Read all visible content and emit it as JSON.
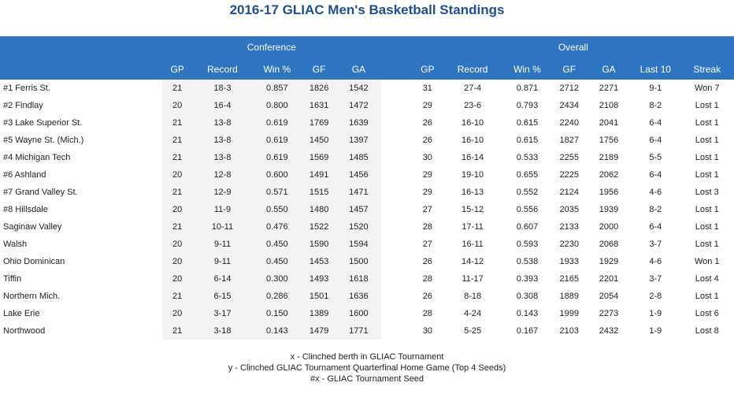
{
  "title": "2016-17 GLIAC Men's Basketball Standings",
  "groups": {
    "conference": "Conference",
    "overall": "Overall"
  },
  "columns": {
    "conf": [
      "GP",
      "Record",
      "Win %",
      "GF",
      "GA"
    ],
    "overall": [
      "GP",
      "Record",
      "Win %",
      "GF",
      "GA",
      "Last 10",
      "Streak"
    ]
  },
  "rows": [
    {
      "team": "#1 Ferris St.",
      "c_gp": "21",
      "c_rec": "18-3",
      "c_win": "0.857",
      "c_gf": "1826",
      "c_ga": "1542",
      "o_gp": "31",
      "o_rec": "27-4",
      "o_win": "0.871",
      "o_gf": "2712",
      "o_ga": "2271",
      "last10": "9-1",
      "streak": "Won 7"
    },
    {
      "team": "#2 Findlay",
      "c_gp": "20",
      "c_rec": "16-4",
      "c_win": "0.800",
      "c_gf": "1631",
      "c_ga": "1472",
      "o_gp": "29",
      "o_rec": "23-6",
      "o_win": "0.793",
      "o_gf": "2434",
      "o_ga": "2108",
      "last10": "8-2",
      "streak": "Lost 1"
    },
    {
      "team": "#3 Lake Superior St.",
      "c_gp": "21",
      "c_rec": "13-8",
      "c_win": "0.619",
      "c_gf": "1769",
      "c_ga": "1639",
      "o_gp": "26",
      "o_rec": "16-10",
      "o_win": "0.615",
      "o_gf": "2240",
      "o_ga": "2041",
      "last10": "6-4",
      "streak": "Lost 1"
    },
    {
      "team": "#5 Wayne St. (Mich.)",
      "c_gp": "21",
      "c_rec": "13-8",
      "c_win": "0.619",
      "c_gf": "1450",
      "c_ga": "1397",
      "o_gp": "26",
      "o_rec": "16-10",
      "o_win": "0.615",
      "o_gf": "1827",
      "o_ga": "1756",
      "last10": "6-4",
      "streak": "Lost 1"
    },
    {
      "team": "#4 Michigan Tech",
      "c_gp": "21",
      "c_rec": "13-8",
      "c_win": "0.619",
      "c_gf": "1569",
      "c_ga": "1485",
      "o_gp": "30",
      "o_rec": "16-14",
      "o_win": "0.533",
      "o_gf": "2255",
      "o_ga": "2189",
      "last10": "5-5",
      "streak": "Lost 1"
    },
    {
      "team": "#6 Ashland",
      "c_gp": "20",
      "c_rec": "12-8",
      "c_win": "0.600",
      "c_gf": "1491",
      "c_ga": "1456",
      "o_gp": "29",
      "o_rec": "19-10",
      "o_win": "0.655",
      "o_gf": "2225",
      "o_ga": "2062",
      "last10": "6-4",
      "streak": "Lost 1"
    },
    {
      "team": "#7 Grand Valley St.",
      "c_gp": "21",
      "c_rec": "12-9",
      "c_win": "0.571",
      "c_gf": "1515",
      "c_ga": "1471",
      "o_gp": "29",
      "o_rec": "16-13",
      "o_win": "0.552",
      "o_gf": "2124",
      "o_ga": "1956",
      "last10": "4-6",
      "streak": "Lost 3"
    },
    {
      "team": "#8 Hillsdale",
      "c_gp": "20",
      "c_rec": "11-9",
      "c_win": "0.550",
      "c_gf": "1480",
      "c_ga": "1457",
      "o_gp": "27",
      "o_rec": "15-12",
      "o_win": "0.556",
      "o_gf": "2035",
      "o_ga": "1939",
      "last10": "8-2",
      "streak": "Lost 1"
    },
    {
      "team": "Saginaw Valley",
      "c_gp": "21",
      "c_rec": "10-11",
      "c_win": "0.476",
      "c_gf": "1522",
      "c_ga": "1520",
      "o_gp": "28",
      "o_rec": "17-11",
      "o_win": "0.607",
      "o_gf": "2133",
      "o_ga": "2000",
      "last10": "6-4",
      "streak": "Lost 1"
    },
    {
      "team": "Walsh",
      "c_gp": "20",
      "c_rec": "9-11",
      "c_win": "0.450",
      "c_gf": "1590",
      "c_ga": "1594",
      "o_gp": "27",
      "o_rec": "16-11",
      "o_win": "0.593",
      "o_gf": "2230",
      "o_ga": "2068",
      "last10": "3-7",
      "streak": "Lost 1"
    },
    {
      "team": "Ohio Dominican",
      "c_gp": "20",
      "c_rec": "9-11",
      "c_win": "0.450",
      "c_gf": "1453",
      "c_ga": "1500",
      "o_gp": "26",
      "o_rec": "14-12",
      "o_win": "0.538",
      "o_gf": "1933",
      "o_ga": "1929",
      "last10": "4-6",
      "streak": "Won 1"
    },
    {
      "team": "Tiffin",
      "c_gp": "20",
      "c_rec": "6-14",
      "c_win": "0.300",
      "c_gf": "1493",
      "c_ga": "1618",
      "o_gp": "28",
      "o_rec": "11-17",
      "o_win": "0.393",
      "o_gf": "2165",
      "o_ga": "2201",
      "last10": "3-7",
      "streak": "Lost 4"
    },
    {
      "team": "Northern Mich.",
      "c_gp": "21",
      "c_rec": "6-15",
      "c_win": "0.286",
      "c_gf": "1501",
      "c_ga": "1636",
      "o_gp": "26",
      "o_rec": "8-18",
      "o_win": "0.308",
      "o_gf": "1889",
      "o_ga": "2054",
      "last10": "2-8",
      "streak": "Lost 1"
    },
    {
      "team": "Lake Erie",
      "c_gp": "20",
      "c_rec": "3-17",
      "c_win": "0.150",
      "c_gf": "1389",
      "c_ga": "1600",
      "o_gp": "28",
      "o_rec": "4-24",
      "o_win": "0.143",
      "o_gf": "1999",
      "o_ga": "2273",
      "last10": "1-9",
      "streak": "Lost 6"
    },
    {
      "team": "Northwood",
      "c_gp": "21",
      "c_rec": "3-18",
      "c_win": "0.143",
      "c_gf": "1479",
      "c_ga": "1771",
      "o_gp": "30",
      "o_rec": "5-25",
      "o_win": "0.167",
      "o_gf": "2103",
      "o_ga": "2432",
      "last10": "1-9",
      "streak": "Lost 8"
    }
  ],
  "legend": [
    "x - Clinched berth in GLIAC Tournament",
    "y - Clinched GLIAC Tournament Quarterfinal Home Game (Top 4 Seeds)",
    "#x - GLIAC Tournament Seed"
  ]
}
